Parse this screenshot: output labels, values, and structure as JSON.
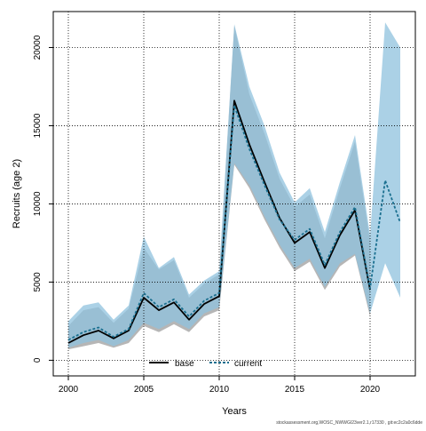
{
  "chart_data": {
    "type": "line",
    "xlabel": "Years",
    "ylabel": "Recruits (age 2)",
    "xlim": [
      1999,
      2023
    ],
    "ylim": [
      -1000,
      22300
    ],
    "x_ticks": [
      2000,
      2005,
      2010,
      2015,
      2020
    ],
    "y_ticks": [
      0,
      5000,
      10000,
      15000,
      20000
    ],
    "x_tick_labels": [
      "2000",
      "2005",
      "2010",
      "2015",
      "2020"
    ],
    "y_tick_labels": [
      "0",
      "5000",
      "10000",
      "15000",
      "20000"
    ],
    "grid": true,
    "legend_position": "bottom-center",
    "colors": {
      "base_line": "#000000",
      "current_line": "#1a6f8f",
      "base_band": "#a9a9a9",
      "current_band": "#8fc1de",
      "grid": "#000000"
    },
    "x": [
      2000,
      2001,
      2002,
      2003,
      2004,
      2005,
      2006,
      2007,
      2008,
      2009,
      2010,
      2011,
      2012,
      2013,
      2014,
      2015,
      2016,
      2017,
      2018,
      2019,
      2020,
      2021,
      2022
    ],
    "series": [
      {
        "name": "base",
        "style": "solid",
        "values": [
          1100,
          1600,
          1900,
          1400,
          1900,
          4000,
          3200,
          3700,
          2600,
          3600,
          4100,
          16600,
          13800,
          11400,
          9100,
          7500,
          8200,
          5900,
          8000,
          9600,
          4500,
          null,
          null
        ],
        "lower": [
          700,
          900,
          1100,
          800,
          1100,
          2200,
          1800,
          2300,
          1800,
          2800,
          3200,
          12500,
          11000,
          9000,
          7200,
          5700,
          6300,
          4500,
          6000,
          6700,
          2800,
          null,
          null
        ],
        "upper": [
          2200,
          3200,
          3400,
          2400,
          3300,
          7200,
          5800,
          6400,
          4000,
          4900,
          5500,
          21400,
          17000,
          14500,
          11600,
          9800,
          10600,
          7800,
          11000,
          14000,
          7600,
          null,
          null
        ]
      },
      {
        "name": "current",
        "style": "dashed",
        "values": [
          1300,
          1800,
          2100,
          1500,
          2000,
          4300,
          3400,
          3900,
          2800,
          3800,
          4300,
          16300,
          13500,
          11200,
          9000,
          7700,
          8400,
          6100,
          8200,
          9800,
          4600,
          11500,
          8800
        ],
        "lower": [
          800,
          1100,
          1300,
          900,
          1300,
          2400,
          2000,
          2500,
          2000,
          3000,
          3400,
          12600,
          11200,
          9200,
          7400,
          5900,
          6500,
          4700,
          6200,
          6800,
          3000,
          6200,
          4000
        ],
        "upper": [
          2500,
          3500,
          3700,
          2600,
          3500,
          7900,
          5900,
          6600,
          4200,
          5100,
          5700,
          21500,
          17500,
          15000,
          12000,
          10100,
          11000,
          8200,
          11400,
          14400,
          8000,
          21600,
          20000
        ]
      }
    ]
  },
  "footnote": "stockassessment.org,WOSC_NWWGI23ver2.1,r17330 , git:ec2c2a0c6dde"
}
